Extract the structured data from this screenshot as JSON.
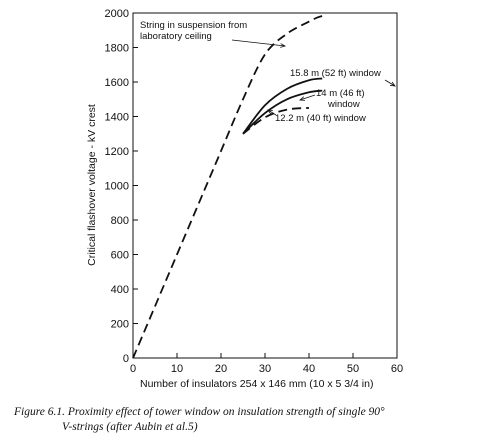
{
  "chart_data": {
    "type": "line",
    "xlabel": "Number of insulators 254 x 146 mm (10 x 5 3/4 in)",
    "ylabel": "Critical flashover voltage - kV crest",
    "xlim": [
      0,
      60
    ],
    "ylim": [
      0,
      2000
    ],
    "x_ticks": [
      "0",
      "10",
      "20",
      "30",
      "40",
      "50",
      "60"
    ],
    "y_ticks": [
      "0",
      "200",
      "400",
      "600",
      "800",
      "1000",
      "1200",
      "1400",
      "1600",
      "1800",
      "2000"
    ],
    "grid": false,
    "series": [
      {
        "name": "String in suspension from laboratory ceiling",
        "style": "dashed",
        "x": [
          0,
          5,
          10,
          15,
          20,
          25,
          30,
          35,
          40,
          42,
          44
        ],
        "y": [
          0,
          300,
          600,
          900,
          1200,
          1500,
          1760,
          1880,
          1950,
          1975,
          1990
        ]
      },
      {
        "name": "15.8 m (52 ft) window",
        "style": "solid",
        "x": [
          25,
          30,
          35,
          40,
          43
        ],
        "y": [
          1300,
          1465,
          1560,
          1610,
          1620
        ]
      },
      {
        "name": "14 m (46 ft) window",
        "style": "solid",
        "x": [
          25,
          30,
          35,
          40,
          43
        ],
        "y": [
          1300,
          1420,
          1500,
          1540,
          1550
        ]
      },
      {
        "name": "12.2 m (40 ft) window",
        "style": "dashed",
        "x": [
          25,
          30,
          35,
          40
        ],
        "y": [
          1300,
          1395,
          1440,
          1450
        ]
      }
    ],
    "annotations": [
      {
        "lines": [
          "String in suspension from",
          "laboratory ceiling"
        ]
      },
      {
        "lines": [
          "15.8 m (52 ft) window"
        ]
      },
      {
        "lines": [
          "14 m (46 ft)",
          "window"
        ]
      },
      {
        "lines": [
          "12.2 m (40 ft) window"
        ]
      }
    ],
    "caption": [
      "Figure 6.1. Proximity effect of tower window on insulation strength of single 90°",
      "V-strings (after  Aubin et al.5)"
    ]
  }
}
